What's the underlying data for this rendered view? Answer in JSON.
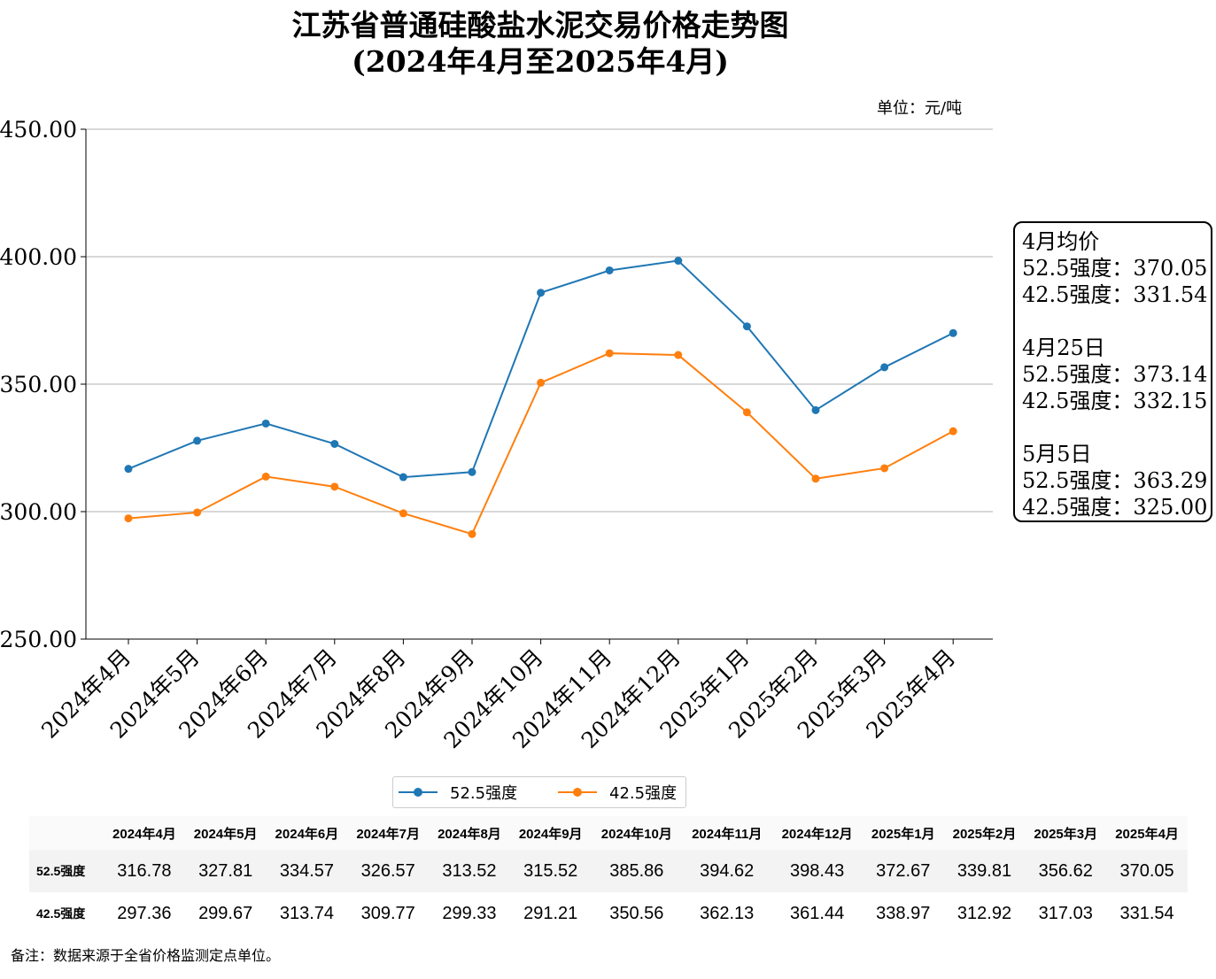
{
  "title_line1": "江苏省普通硅酸盐水泥交易价格走势图",
  "title_line2": "(2024年4月至2025年4月)",
  "unit_label": "单位：元/吨",
  "note": "备注：数据来源于全省价格监测定点单位。",
  "info_box": {
    "lines_group1": [
      "4月均价",
      "52.5强度：370.05",
      "42.5强度：331.54"
    ],
    "lines_group2": [
      "4月25日",
      "52.5强度：373.14",
      "42.5强度：332.15"
    ],
    "lines_group3": [
      "5月5日",
      "52.5强度：363.29",
      "42.5强度：325.00"
    ]
  },
  "colors": {
    "series_525": "#1f77b4",
    "series_425": "#ff7f0e",
    "grid": "#b0b0b0"
  },
  "chart_data": {
    "type": "line",
    "title": "江苏省普通硅酸盐水泥交易价格走势图 (2024年4月至2025年4月)",
    "categories": [
      "2024年4月",
      "2024年5月",
      "2024年6月",
      "2024年7月",
      "2024年8月",
      "2024年9月",
      "2024年10月",
      "2024年11月",
      "2024年12月",
      "2025年1月",
      "2025年2月",
      "2025年3月",
      "2025年4月"
    ],
    "series": [
      {
        "name": "52.5强度",
        "values": [
          316.78,
          327.81,
          334.57,
          326.57,
          313.52,
          315.52,
          385.86,
          394.62,
          398.43,
          372.67,
          339.81,
          356.62,
          370.05
        ]
      },
      {
        "name": "42.5强度",
        "values": [
          297.36,
          299.67,
          313.74,
          309.77,
          299.33,
          291.21,
          350.56,
          362.13,
          361.44,
          338.97,
          312.92,
          317.03,
          331.54
        ]
      }
    ],
    "ylim": [
      250,
      450
    ],
    "yticks": [
      "250.00",
      "300.00",
      "350.00",
      "400.00",
      "450.00"
    ],
    "grid": "horizontal",
    "legend_position": "bottom-center"
  },
  "table": {
    "headers": [
      "2024年4月",
      "2024年5月",
      "2024年6月",
      "2024年7月",
      "2024年8月",
      "2024年9月",
      "2024年10月",
      "2024年11月",
      "2024年12月",
      "2025年1月",
      "2025年2月",
      "2025年3月",
      "2025年4月"
    ],
    "rows": [
      {
        "label": "52.5强度",
        "values": [
          "316.78",
          "327.81",
          "334.57",
          "326.57",
          "313.52",
          "315.52",
          "385.86",
          "394.62",
          "398.43",
          "372.67",
          "339.81",
          "356.62",
          "370.05"
        ]
      },
      {
        "label": "42.5强度",
        "values": [
          "297.36",
          "299.67",
          "313.74",
          "309.77",
          "299.33",
          "291.21",
          "350.56",
          "362.13",
          "361.44",
          "338.97",
          "312.92",
          "317.03",
          "331.54"
        ]
      }
    ]
  }
}
